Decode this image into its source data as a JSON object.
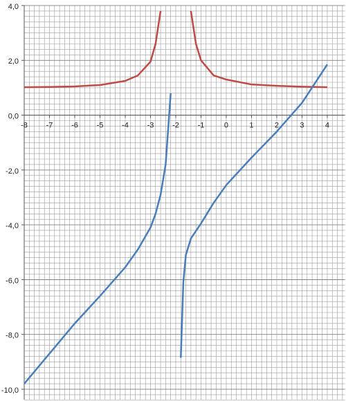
{
  "chart_data": {
    "type": "line",
    "xlim": [
      -8,
      4.7
    ],
    "ylim": [
      -10,
      4
    ],
    "xticks": [
      -8,
      -7,
      -6,
      -5,
      -4,
      -3,
      -2,
      -1,
      0,
      1,
      2,
      3,
      4
    ],
    "yticks": [
      {
        "value": 4,
        "label": "4,0"
      },
      {
        "value": 2,
        "label": "2,0"
      },
      {
        "value": 0,
        "label": "0,0"
      },
      {
        "value": -2,
        "label": "-2,0"
      },
      {
        "value": -4,
        "label": "-4,0"
      },
      {
        "value": -6,
        "label": "-6,0"
      },
      {
        "value": -8,
        "label": "-8,0"
      },
      {
        "value": -10,
        "label": "-10,0"
      }
    ],
    "grid": true,
    "xminor": 0.2,
    "yminor": 0.2,
    "series": [
      {
        "color": "#be4b48",
        "x": [
          -8,
          -7,
          -6,
          -5,
          -4,
          -3.5,
          -3,
          -2.8,
          -2.6,
          null,
          -1.4,
          -1.2,
          -1,
          -0.5,
          0,
          1,
          2,
          3,
          4
        ],
        "values": [
          1.02,
          1.03,
          1.05,
          1.1,
          1.25,
          1.45,
          1.95,
          2.6,
          3.8,
          null,
          3.8,
          2.6,
          2.0,
          1.45,
          1.3,
          1.12,
          1.07,
          1.04,
          1.02
        ]
      },
      {
        "color": "#4a7ebb",
        "x": [
          -8,
          -7,
          -6,
          -5,
          -4,
          -3.5,
          -3,
          -2.8,
          -2.6,
          -2.4,
          -2.3,
          -2.2,
          null,
          -1.8,
          -1.7,
          -1.6,
          -1.4,
          -1,
          -0.5,
          0,
          1,
          2,
          3,
          4
        ],
        "values": [
          -9.8,
          -8.7,
          -7.6,
          -6.6,
          -5.55,
          -4.9,
          -4.1,
          -3.6,
          -2.9,
          -1.8,
          -0.5,
          0.8,
          null,
          -8.85,
          -6.1,
          -5.1,
          -4.5,
          -3.95,
          -3.2,
          -2.55,
          -1.55,
          -0.6,
          0.45,
          1.85
        ]
      }
    ]
  }
}
